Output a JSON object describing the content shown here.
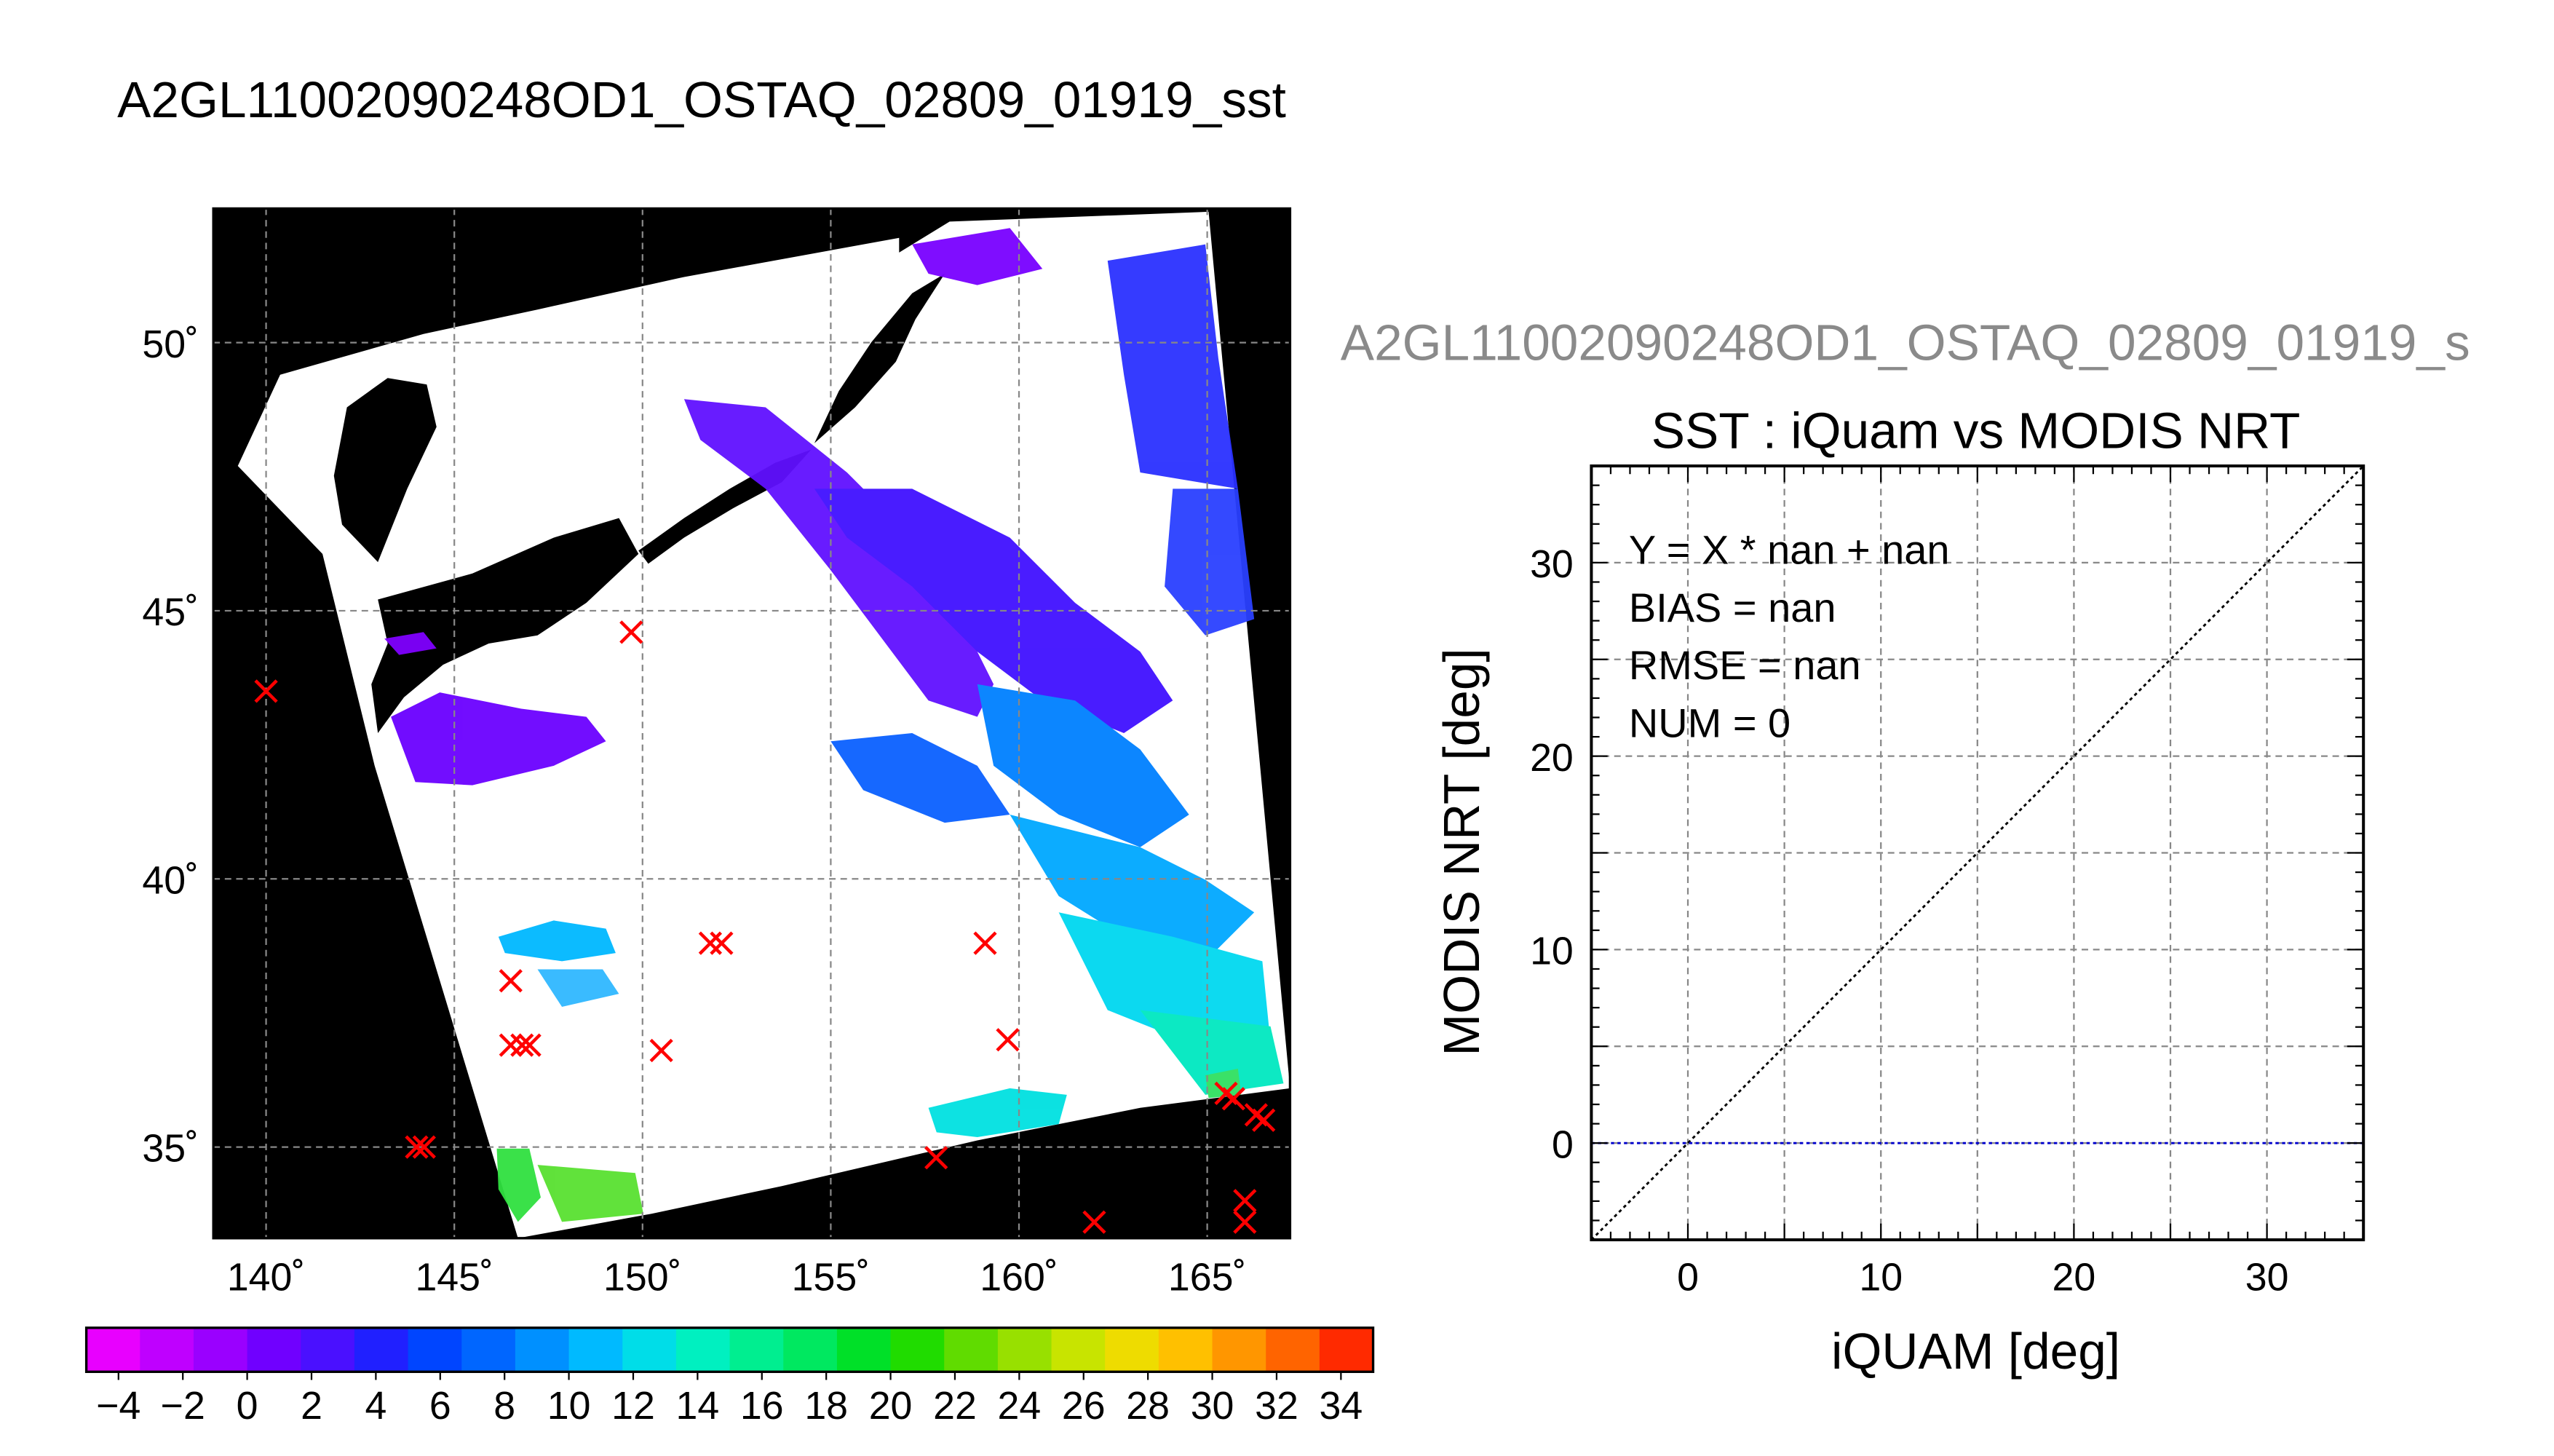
{
  "titles": {
    "main": "A2GL11002090248OD1_OSTAQ_02809_01919_sst",
    "scatter_header": "A2GL11002090248OD1_OSTAQ_02809_01919_s"
  },
  "colors": {
    "map_background": "#000000",
    "swath": "#ffffff",
    "buoy_marker": "#ff0000",
    "grid": "#888888",
    "one_to_one": "#000000",
    "zero_line": "#0000cc"
  },
  "chart_data": [
    {
      "type": "heatmap",
      "name": "sst-map",
      "x_ticks": [
        {
          "value": 140,
          "label": "140˚"
        },
        {
          "value": 145,
          "label": "145˚"
        },
        {
          "value": 150,
          "label": "150˚"
        },
        {
          "value": 155,
          "label": "155˚"
        },
        {
          "value": 160,
          "label": "160˚"
        },
        {
          "value": 165,
          "label": "165˚"
        }
      ],
      "y_ticks": [
        {
          "value": 35,
          "label": "35˚"
        },
        {
          "value": 40,
          "label": "40˚"
        },
        {
          "value": 45,
          "label": "45˚"
        },
        {
          "value": 50,
          "label": "50˚"
        }
      ],
      "xlim": [
        138.6,
        167.2
      ],
      "ylim": [
        33.3,
        52.5
      ],
      "grid": true,
      "colorbar": {
        "min": -5,
        "max": 35,
        "step": 2,
        "tick_labels": [
          "−4",
          "−2",
          "0",
          "2",
          "4",
          "6",
          "8",
          "10",
          "12",
          "14",
          "16",
          "18",
          "20",
          "22",
          "24",
          "26",
          "28",
          "30",
          "32",
          "34"
        ],
        "colors": [
          "#e800ff",
          "#bf00ff",
          "#9a00ff",
          "#7000ff",
          "#4a10ff",
          "#2020ff",
          "#0045ff",
          "#0066ff",
          "#0090ff",
          "#00baff",
          "#00dde8",
          "#00f0c0",
          "#00ee90",
          "#00e860",
          "#00e028",
          "#20dc00",
          "#60dc00",
          "#98e000",
          "#c8e400",
          "#eedc00",
          "#ffc000",
          "#ff9600",
          "#ff6400",
          "#ff2a00"
        ]
      },
      "buoys": [
        {
          "lon": 140.0,
          "lat": 43.5
        },
        {
          "lon": 149.7,
          "lat": 44.6
        },
        {
          "lon": 146.5,
          "lat": 38.1
        },
        {
          "lon": 146.5,
          "lat": 36.9
        },
        {
          "lon": 146.8,
          "lat": 36.9
        },
        {
          "lon": 147.0,
          "lat": 36.9
        },
        {
          "lon": 150.5,
          "lat": 36.8
        },
        {
          "lon": 151.8,
          "lat": 38.8
        },
        {
          "lon": 152.1,
          "lat": 38.8
        },
        {
          "lon": 159.1,
          "lat": 38.8
        },
        {
          "lon": 159.7,
          "lat": 37.0
        },
        {
          "lon": 144.0,
          "lat": 35.0
        },
        {
          "lon": 144.2,
          "lat": 35.0
        },
        {
          "lon": 157.8,
          "lat": 34.8
        },
        {
          "lon": 162.0,
          "lat": 33.6
        },
        {
          "lon": 165.5,
          "lat": 36.0
        },
        {
          "lon": 165.7,
          "lat": 35.9
        },
        {
          "lon": 166.3,
          "lat": 35.6
        },
        {
          "lon": 166.5,
          "lat": 35.5
        },
        {
          "lon": 166.0,
          "lat": 34.0
        },
        {
          "lon": 166.0,
          "lat": 33.6
        }
      ]
    },
    {
      "type": "scatter",
      "name": "iquam-vs-modis",
      "title": "SST : iQuam vs MODIS NRT",
      "xlabel": "iQUAM [deg]",
      "ylabel": "MODIS NRT [deg]",
      "xlim": [
        -5,
        35
      ],
      "ylim": [
        -5,
        35
      ],
      "x_ticks": [
        0,
        10,
        20,
        30
      ],
      "y_ticks": [
        0,
        10,
        20,
        30
      ],
      "grid_step": 5,
      "grid": true,
      "points": [],
      "reference_lines": [
        "y = x",
        "y = 0"
      ],
      "stats": [
        "Y = X * nan + nan",
        "BIAS = nan",
        "RMSE = nan",
        "NUM = 0"
      ]
    }
  ]
}
